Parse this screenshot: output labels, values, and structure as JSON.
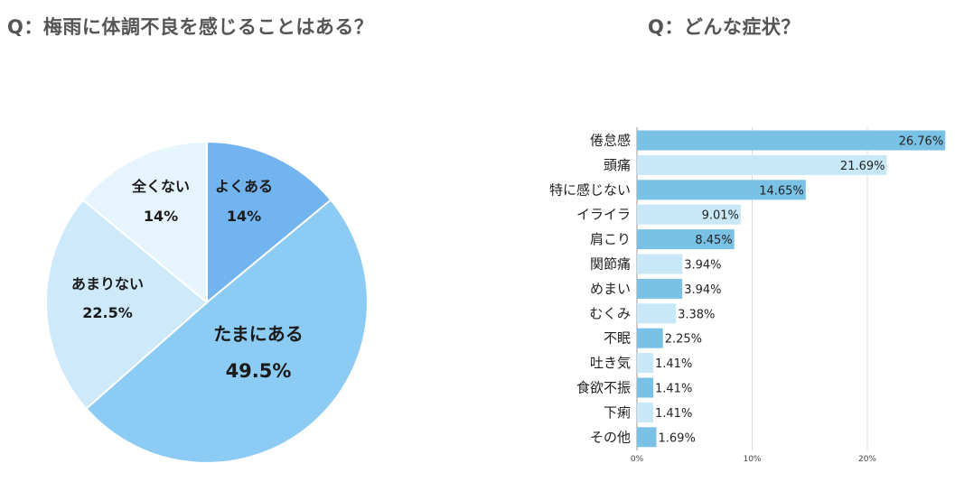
{
  "chart_data": [
    {
      "type": "pie",
      "title": "Q：梅雨に体調不良を感じることはある？",
      "slices": [
        {
          "label": "よくある",
          "value": 14,
          "value_label": "14%",
          "color": "#72b4f0"
        },
        {
          "label": "たまにある",
          "value": 49.5,
          "value_label": "49.5%",
          "color": "#8ccbf4"
        },
        {
          "label": "あまりない",
          "value": 22.5,
          "value_label": "22.5%",
          "color": "#cde9fa"
        },
        {
          "label": "全くない",
          "value": 14,
          "value_label": "14%",
          "color": "#e6f4fd"
        }
      ]
    },
    {
      "type": "bar",
      "orientation": "horizontal",
      "title": "Q：どんな症状？",
      "categories": [
        "倦怠感",
        "頭痛",
        "特に感じない",
        "イライラ",
        "肩こり",
        "関節痛",
        "めまい",
        "むくみ",
        "不眠",
        "吐き気",
        "食欲不振",
        "下痢",
        "その他"
      ],
      "values": [
        26.76,
        21.69,
        14.65,
        9.01,
        8.45,
        3.94,
        3.94,
        3.38,
        2.25,
        1.41,
        1.41,
        1.41,
        1.69
      ],
      "value_labels": [
        "26.76%",
        "21.69%",
        "14.65%",
        "9.01%",
        "8.45%",
        "3.94%",
        "3.94%",
        "3.38%",
        "2.25%",
        "1.41%",
        "1.41%",
        "1.41%",
        "1.69%"
      ],
      "xlim": [
        0,
        28
      ],
      "xticks": [
        0,
        10,
        20
      ],
      "xtick_labels": [
        "0%",
        "10%",
        "20%"
      ],
      "colors": [
        "#7ac1e6",
        "#c8e8f7"
      ]
    }
  ]
}
